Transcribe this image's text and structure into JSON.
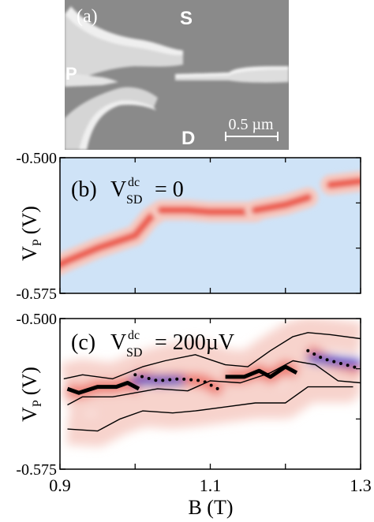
{
  "figure": {
    "panel_a": {
      "label": "(a)",
      "letters": {
        "source": "S",
        "plunger": "P",
        "drain": "D"
      },
      "scalebar_label": "0.5 µm"
    },
    "panel_b": {
      "label": "(b)",
      "formula": {
        "main": "V",
        "superscript": "dc",
        "subscript": "SD",
        "equals_value": "= 0"
      },
      "y_axis_label": {
        "main": "V",
        "subscript": "P",
        "unit": "(V)"
      }
    },
    "panel_c": {
      "label": "(c)",
      "formula": {
        "main": "V",
        "superscript": "dc",
        "subscript": "SD",
        "equals_value": "= 200µV"
      },
      "y_axis_label": {
        "main": "V",
        "subscript": "P",
        "unit": "(V)"
      }
    },
    "x_axis_label": "B (T)",
    "colors": {
      "background_blue": "#cfe3f7",
      "peak_red": "#e8392c",
      "dip_blue": "#1f3fd6"
    }
  },
  "chart_data": [
    {
      "panel": "b",
      "type": "heatmap",
      "xlim": [
        0.9,
        1.3
      ],
      "ylim": [
        -0.575,
        -0.5
      ],
      "y_ticks": [
        "-0.500",
        "-0.575"
      ],
      "ridges": [
        {
          "x": [
            0.895,
            0.91,
            0.95,
            1.0,
            1.02,
            1.035
          ],
          "y": [
            -0.56,
            -0.557,
            -0.55,
            -0.543,
            -0.533,
            -0.529
          ]
        },
        {
          "x": [
            1.035,
            1.07,
            1.1,
            1.14,
            1.16
          ],
          "y": [
            -0.529,
            -0.529,
            -0.53,
            -0.53,
            -0.53
          ]
        },
        {
          "x": [
            1.16,
            1.2,
            1.23
          ],
          "y": [
            -0.529,
            -0.526,
            -0.522
          ]
        },
        {
          "x": [
            1.26,
            1.3
          ],
          "y": [
            -0.515,
            -0.513
          ]
        }
      ]
    },
    {
      "panel": "c",
      "type": "heatmap",
      "xlim": [
        0.9,
        1.3
      ],
      "ylim": [
        -0.575,
        -0.5
      ],
      "x_ticks": [
        "0.9",
        "1.1",
        "1.3"
      ],
      "y_ticks": [
        "-0.500",
        "-0.575"
      ],
      "thin_lines": [
        {
          "x": [
            0.91,
            0.93,
            0.97,
            1.0,
            1.03,
            1.07,
            1.1,
            1.14,
            1.18,
            1.21,
            1.24,
            1.27,
            1.3
          ],
          "y": [
            -0.543,
            -0.539,
            -0.539,
            -0.537,
            -0.535,
            -0.536,
            -0.531,
            -0.532,
            -0.527,
            -0.521,
            -0.523,
            -0.531,
            -0.532
          ]
        },
        {
          "x": [
            0.905,
            0.93,
            0.97,
            1.01,
            1.04,
            1.08,
            1.12,
            1.15,
            1.18,
            1.21,
            1.23,
            1.26,
            1.3
          ],
          "y": [
            -0.53,
            -0.528,
            -0.53,
            -0.524,
            -0.521,
            -0.518,
            -0.523,
            -0.524,
            -0.516,
            -0.509,
            -0.507,
            -0.508,
            -0.51
          ]
        },
        {
          "x": [
            0.91,
            0.95,
            0.98,
            1.01,
            1.05,
            1.08,
            1.12,
            1.16,
            1.2,
            1.23,
            1.26,
            1.29
          ],
          "y": [
            -0.555,
            -0.556,
            -0.55,
            -0.546,
            -0.547,
            -0.546,
            -0.544,
            -0.542,
            -0.542,
            -0.534,
            -0.534,
            -0.534
          ]
        }
      ],
      "thick_lines": [
        {
          "x": [
            0.91,
            0.925,
            0.95,
            0.975,
            0.99,
            1.005
          ],
          "y": [
            -0.535,
            -0.537,
            -0.534,
            -0.534,
            -0.532,
            -0.535
          ]
        },
        {
          "x": [
            1.12,
            1.145,
            1.165,
            1.18,
            1.2,
            1.215
          ],
          "y": [
            -0.529,
            -0.529,
            -0.526,
            -0.529,
            -0.524,
            -0.527
          ]
        }
      ],
      "dotted_lines": [
        {
          "x": [
            1.0,
            1.03,
            1.06,
            1.09,
            1.115
          ],
          "y": [
            -0.528,
            -0.531,
            -0.53,
            -0.531,
            -0.536
          ]
        },
        {
          "x": [
            1.23,
            1.25,
            1.27,
            1.29,
            1.3
          ],
          "y": [
            -0.516,
            -0.52,
            -0.522,
            -0.524,
            -0.525
          ]
        }
      ],
      "blue_dips": [
        {
          "x": [
            1.0,
            1.06
          ],
          "y": [
            -0.531,
            -0.531
          ]
        },
        {
          "x": [
            1.235,
            1.295
          ],
          "y": [
            -0.52,
            -0.522
          ]
        }
      ]
    }
  ]
}
